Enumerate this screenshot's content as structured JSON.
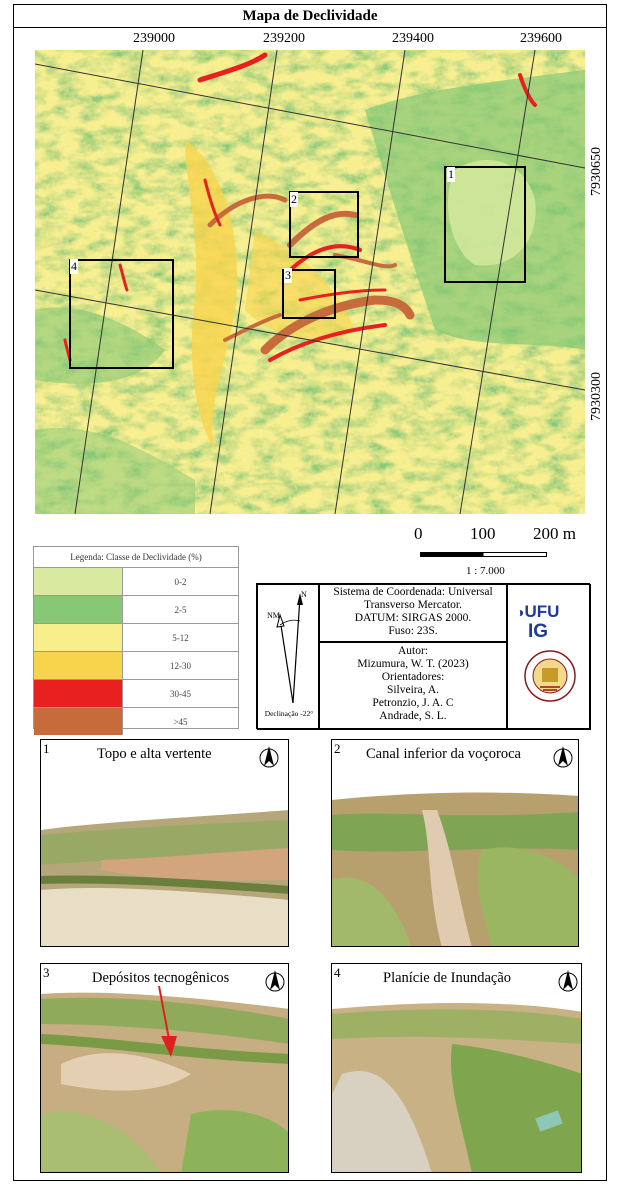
{
  "map": {
    "title": "Mapa de Declividade",
    "top_coords": [
      "239000",
      "239200",
      "239400",
      "239600"
    ],
    "right_coords": [
      "7930650",
      "7930300"
    ],
    "box_labels": [
      "1",
      "2",
      "3",
      "4"
    ]
  },
  "scale": {
    "labels": [
      "0",
      "100",
      "200 m"
    ],
    "ratio": "1 : 7.000"
  },
  "legend": {
    "title": "Legenda: Classe de Declividade  (%)",
    "classes": [
      {
        "label": "0-2",
        "color": "#d7eaa0"
      },
      {
        "label": "2-5",
        "color": "#86c875"
      },
      {
        "label": "5-12",
        "color": "#f8ee8c"
      },
      {
        "label": "12-30",
        "color": "#f8d34c"
      },
      {
        "label": "30-45",
        "color": "#e82020"
      },
      {
        "label": ">45",
        "color": "#c86b3c"
      }
    ]
  },
  "info": {
    "north_label": "N",
    "nm_label": "NM",
    "declination": "Declinação -22°",
    "system_lines": [
      "Sistema de Coordenada: Universal",
      "Transverso Mercator.",
      "DATUM: SIRGAS 2000.",
      "Fuso: 23S."
    ],
    "author_lines": [
      "Autor:",
      "Mizumura, W. T. (2023)",
      "Orientadores:",
      "Silveira, A.",
      "Petronzio, J. A. C",
      "Andrade, S. L."
    ],
    "logo_ufu": "UFU",
    "logo_ig": "IG"
  },
  "panels": [
    {
      "number": "1",
      "title": "Topo e alta vertente"
    },
    {
      "number": "2",
      "title": "Canal inferior da voçoroca"
    },
    {
      "number": "3",
      "title": "Depósitos tecnogênicos"
    },
    {
      "number": "4",
      "title": "Planície de Inundação"
    }
  ],
  "colors": {
    "grid_line": "#333333",
    "box_outline": "#000000",
    "arrow": "#e02020"
  }
}
